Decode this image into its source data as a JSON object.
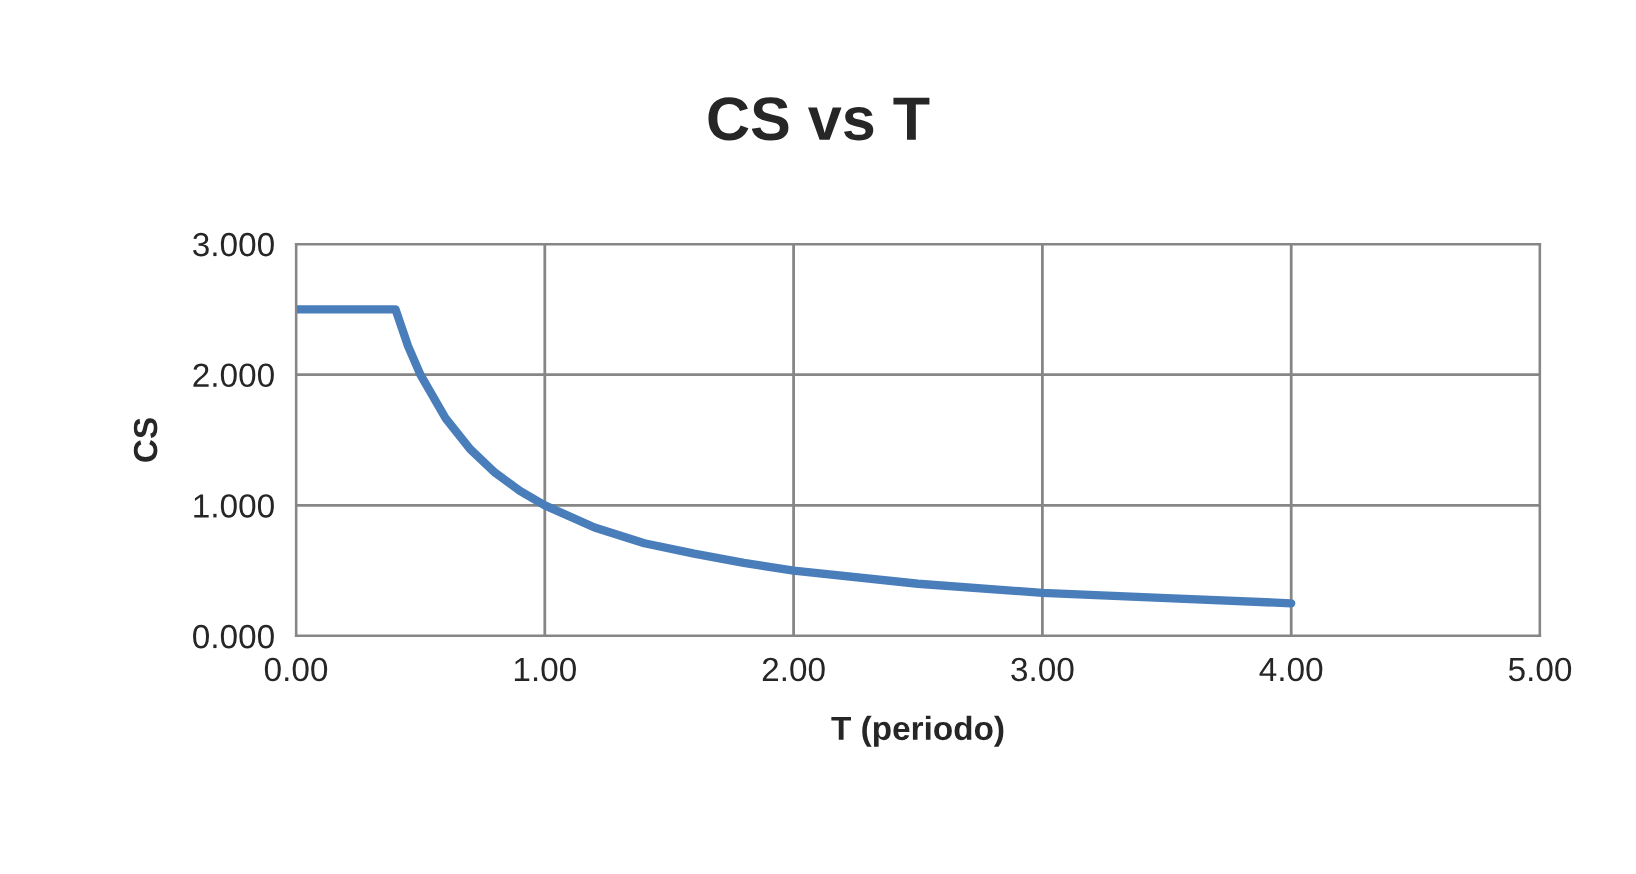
{
  "chart_data": {
    "type": "line",
    "title": "CS vs T",
    "xlabel": "T (periodo)",
    "ylabel": "CS",
    "x": [
      0,
      0.4,
      0.45,
      0.5,
      0.6,
      0.7,
      0.8,
      0.9,
      1.0,
      1.2,
      1.4,
      1.6,
      1.8,
      2.0,
      2.5,
      3.0,
      3.5,
      4.0
    ],
    "series": [
      {
        "color": "#4a7ebb",
        "values": [
          2.5,
          2.5,
          2.22,
          2.0,
          1.67,
          1.43,
          1.25,
          1.11,
          1.0,
          0.83,
          0.71,
          0.63,
          0.56,
          0.5,
          0.4,
          0.33,
          0.29,
          0.25
        ]
      }
    ],
    "xlim": [
      0,
      5
    ],
    "xticks": [
      {
        "value": 0,
        "label": "0.00"
      },
      {
        "value": 1,
        "label": "1.00"
      },
      {
        "value": 2,
        "label": "2.00"
      },
      {
        "value": 3,
        "label": "3.00"
      },
      {
        "value": 4,
        "label": "4.00"
      },
      {
        "value": 5,
        "label": "5.00"
      }
    ],
    "ylim": [
      0,
      3
    ],
    "yticks": [
      {
        "value": 0,
        "label": "0.000"
      },
      {
        "value": 1,
        "label": "1.000"
      },
      {
        "value": 2,
        "label": "2.000"
      },
      {
        "value": 3,
        "label": "3.000"
      }
    ],
    "grid": true,
    "marker": "none",
    "line_style": "solid"
  }
}
